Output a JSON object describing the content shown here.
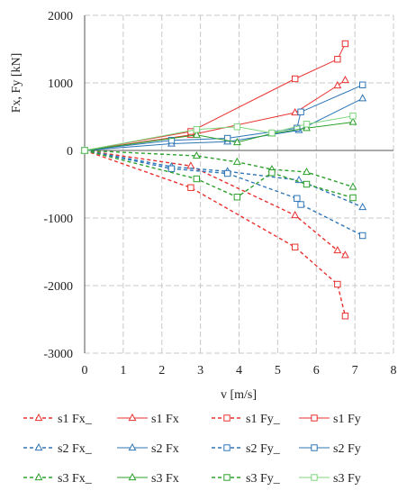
{
  "chart_data": {
    "type": "line",
    "title": "",
    "xlabel": "v [m/s]",
    "ylabel": "Fx, Fy [kN]",
    "xlim": [
      0,
      8
    ],
    "ylim": [
      -3000,
      2000
    ],
    "xticks": [
      0,
      1,
      2,
      3,
      4,
      5,
      6,
      7,
      8
    ],
    "yticks": [
      2000,
      1000,
      0,
      -1000,
      -2000,
      -3000
    ],
    "grid": true,
    "legend_position": "bottom",
    "series": [
      {
        "name": "s1 Fx_",
        "color": "#e8312f",
        "dash": "dashed",
        "marker": "triangle",
        "points": [
          [
            0,
            0
          ],
          [
            2.75,
            -230
          ],
          [
            5.45,
            -960
          ],
          [
            6.55,
            -1480
          ],
          [
            6.75,
            -1550
          ]
        ]
      },
      {
        "name": "s1 Fx",
        "color": "#e8312f",
        "dash": "solid",
        "marker": "triangle",
        "points": [
          [
            0,
            0
          ],
          [
            2.75,
            230
          ],
          [
            5.45,
            560
          ],
          [
            6.55,
            960
          ],
          [
            6.75,
            1040
          ]
        ]
      },
      {
        "name": "s1 Fy_",
        "color": "#e8312f",
        "dash": "dashed",
        "marker": "square",
        "points": [
          [
            0,
            0
          ],
          [
            2.75,
            -550
          ],
          [
            5.45,
            -1430
          ],
          [
            6.55,
            -1980
          ],
          [
            6.75,
            -2450
          ]
        ]
      },
      {
        "name": "s1 Fy",
        "color": "#e8312f",
        "dash": "solid",
        "marker": "square",
        "points": [
          [
            0,
            0
          ],
          [
            2.75,
            280
          ],
          [
            5.45,
            1060
          ],
          [
            6.55,
            1350
          ],
          [
            6.75,
            1580
          ]
        ]
      },
      {
        "name": "s2 Fx_",
        "color": "#2e75b6",
        "dash": "dashed",
        "marker": "triangle",
        "points": [
          [
            0,
            0
          ],
          [
            2.25,
            -240
          ],
          [
            3.7,
            -310
          ],
          [
            5.55,
            -440
          ],
          [
            7.2,
            -840
          ]
        ]
      },
      {
        "name": "s2 Fx",
        "color": "#2e75b6",
        "dash": "solid",
        "marker": "triangle",
        "points": [
          [
            0,
            0
          ],
          [
            2.25,
            100
          ],
          [
            3.7,
            130
          ],
          [
            5.55,
            300
          ],
          [
            7.2,
            770
          ]
        ]
      },
      {
        "name": "s2 Fy_",
        "color": "#2e75b6",
        "dash": "dashed",
        "marker": "square",
        "points": [
          [
            0,
            0
          ],
          [
            2.25,
            -270
          ],
          [
            3.7,
            -340
          ],
          [
            5.5,
            -710
          ],
          [
            5.6,
            -800
          ],
          [
            7.2,
            -1260
          ]
        ]
      },
      {
        "name": "s2 Fy",
        "color": "#2e75b6",
        "dash": "solid",
        "marker": "square",
        "points": [
          [
            0,
            0
          ],
          [
            2.25,
            150
          ],
          [
            3.7,
            180
          ],
          [
            5.5,
            330
          ],
          [
            5.6,
            570
          ],
          [
            7.2,
            970
          ]
        ]
      },
      {
        "name": "s3 Fx_",
        "color": "#2ca02c",
        "dash": "dashed",
        "marker": "triangle",
        "points": [
          [
            0,
            0
          ],
          [
            2.9,
            -80
          ],
          [
            3.95,
            -170
          ],
          [
            4.85,
            -280
          ],
          [
            5.75,
            -320
          ],
          [
            6.95,
            -540
          ]
        ]
      },
      {
        "name": "s3 Fx",
        "color": "#2ca02c",
        "dash": "solid",
        "marker": "triangle",
        "points": [
          [
            0,
            0
          ],
          [
            2.9,
            230
          ],
          [
            3.95,
            120
          ],
          [
            4.85,
            250
          ],
          [
            5.75,
            330
          ],
          [
            6.95,
            420
          ]
        ]
      },
      {
        "name": "s3 Fy_",
        "color": "#2ca02c",
        "dash": "dashed",
        "marker": "square",
        "points": [
          [
            0,
            0
          ],
          [
            2.9,
            -420
          ],
          [
            3.95,
            -690
          ],
          [
            4.85,
            -330
          ],
          [
            5.75,
            -500
          ],
          [
            6.95,
            -700
          ]
        ]
      },
      {
        "name": "s3 Fy",
        "color": "#7dd67d",
        "dash": "solid",
        "marker": "square",
        "points": [
          [
            0,
            0
          ],
          [
            2.9,
            310
          ],
          [
            3.95,
            350
          ],
          [
            4.85,
            260
          ],
          [
            5.75,
            390
          ],
          [
            6.95,
            510
          ]
        ]
      }
    ]
  }
}
